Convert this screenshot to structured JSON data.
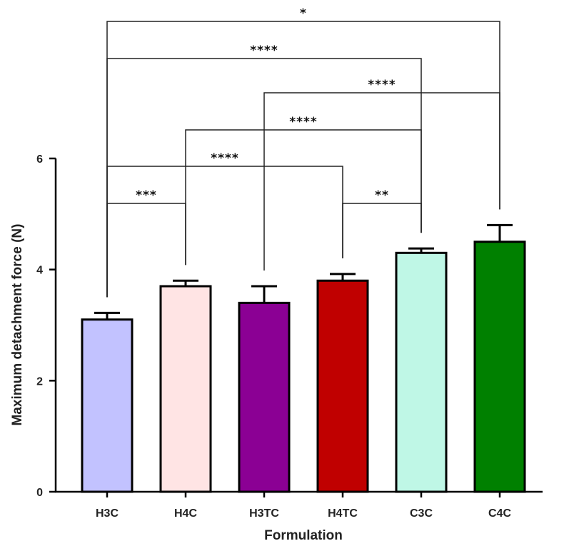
{
  "chart_data": {
    "type": "bar",
    "categories": [
      "H3C",
      "H4C",
      "H3TC",
      "H4TC",
      "C3C",
      "C4C"
    ],
    "values": [
      3.1,
      3.7,
      3.4,
      3.8,
      4.3,
      4.5
    ],
    "errors": [
      0.12,
      0.1,
      0.3,
      0.12,
      0.08,
      0.3
    ],
    "colors": [
      "#c2c2ff",
      "#ffe4e4",
      "#8b0094",
      "#c00000",
      "#bff7e6",
      "#008000"
    ],
    "xlabel": "Formulation",
    "ylabel": "Maximum detachment force (N)",
    "ylim": [
      0,
      6
    ],
    "yticks": [
      "0",
      "2",
      "4",
      "6"
    ],
    "grid": false,
    "significance": [
      {
        "from": "H3C",
        "to": "H4C",
        "label": "***"
      },
      {
        "from": "H4TC",
        "to": "C3C",
        "label": "**"
      },
      {
        "from": "H3C",
        "to": "H4TC",
        "label": "****"
      },
      {
        "from": "H4C",
        "to": "C3C",
        "label": "****"
      },
      {
        "from": "H3TC",
        "to": "C4C",
        "label": "****"
      },
      {
        "from": "H3C",
        "to": "C3C",
        "label": "****"
      },
      {
        "from": "H3C",
        "to": "C4C",
        "label": "*"
      }
    ]
  }
}
